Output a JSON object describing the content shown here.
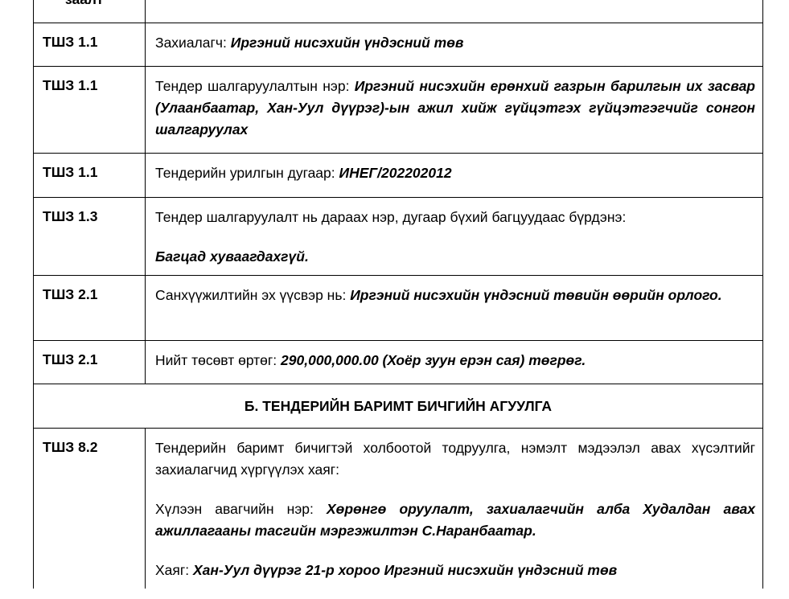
{
  "header_row": {
    "label": "заалт"
  },
  "rows": [
    {
      "ref": "ТШЗ 1.1",
      "p1": {
        "label": "Захиалагч: ",
        "value": "Иргэний нисэхийн үндэсний төв"
      }
    },
    {
      "ref": "ТШЗ 1.1",
      "p1": {
        "label": "Тендер шалгаруулалтын нэр: ",
        "value": "Иргэний нисэхийн ерөнхий газрын барилгын их засвар (Улаанбаатар, Хан-Уул дүүрэг)-ын ажил хийж гүйцэтгэх гүйцэтгэгчийг сонгон шалгаруулах"
      }
    },
    {
      "ref": "ТШЗ 1.1",
      "p1": {
        "label": "Тендерийн урилгын дугаар: ",
        "value": "ИНЕГ/202202012"
      }
    },
    {
      "ref": "ТШЗ 1.3",
      "p1": {
        "label": "Тендер шалгаруулалт нь дараах нэр, дугаар бүхий багцуудаас бүрдэнэ:"
      },
      "p2": {
        "value": "Багцад хуваагдахгүй."
      }
    },
    {
      "ref": "ТШЗ 2.1",
      "p1": {
        "label": "Санхүүжилтийн эх үүсвэр нь: ",
        "value": "Иргэний нисэхийн үндэсний төвийн өөрийн орлого."
      }
    },
    {
      "ref": "ТШЗ 2.1",
      "p1": {
        "label": "Нийт төсөвт өртөг: ",
        "value": "290,000,000.00 (Хоёр зуун ерэн сая) төгрөг."
      }
    }
  ],
  "section_b": {
    "title": "Б. ТЕНДЕРИЙН БАРИМТ БИЧГИЙН АГУУЛГА"
  },
  "row_8_2": {
    "ref": "ТШЗ 8.2",
    "p1": {
      "label": "Тендерийн баримт бичигтэй холбоотой тодруулга, нэмэлт мэдээлэл авах хүсэлтийг захиалагчид хүргүүлэх хаяг:"
    },
    "p2": {
      "label": "Хүлээн авагчийн нэр: ",
      "value": "Хөрөнгө оруулалт, захиалагчийн алба Худалдан авах ажиллагааны тасгийн мэргэжилтэн С.Наранбаатар."
    },
    "p3": {
      "label": "Хаяг: ",
      "value": "Хан-Уул дүүрэг 21-р хороо Иргэний нисэхийн үндэсний төв"
    }
  }
}
